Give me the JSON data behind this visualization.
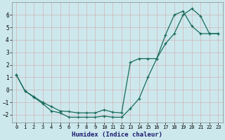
{
  "xlabel": "Humidex (Indice chaleur)",
  "background_color": "#cce8ed",
  "grid_color": "#b8d4d8",
  "line_color": "#1a6b5a",
  "series1_x": [
    0,
    1,
    2,
    3,
    4,
    5,
    6,
    7,
    8,
    9,
    10,
    11,
    12,
    13,
    14,
    15,
    16,
    17,
    18,
    19,
    20,
    21,
    22,
    23
  ],
  "series1_y": [
    1.2,
    -0.1,
    -0.6,
    -1.1,
    -1.7,
    -1.85,
    -2.2,
    -2.2,
    -2.2,
    -2.2,
    -2.1,
    -2.2,
    -2.2,
    -1.5,
    -0.7,
    1.0,
    2.5,
    3.7,
    4.5,
    6.0,
    6.5,
    5.9,
    4.5,
    4.5
  ],
  "series2_x": [
    0,
    1,
    2,
    3,
    4,
    5,
    6,
    7,
    8,
    9,
    10,
    11,
    12,
    13,
    14,
    15,
    16,
    17,
    18,
    19,
    20,
    21,
    22,
    23
  ],
  "series2_y": [
    1.2,
    -0.1,
    -0.55,
    -1.0,
    -1.35,
    -1.7,
    -1.75,
    -1.85,
    -1.85,
    -1.85,
    -1.6,
    -1.8,
    -1.85,
    2.2,
    2.5,
    2.5,
    2.5,
    4.4,
    6.0,
    6.3,
    5.1,
    4.5,
    4.5,
    4.5
  ],
  "ylim": [
    -2.6,
    7.0
  ],
  "xlim": [
    -0.5,
    23.5
  ],
  "yticks": [
    -2,
    -1,
    0,
    1,
    2,
    3,
    4,
    5,
    6
  ],
  "xticks": [
    0,
    1,
    2,
    3,
    4,
    5,
    6,
    7,
    8,
    9,
    10,
    11,
    12,
    13,
    14,
    15,
    16,
    17,
    18,
    19,
    20,
    21,
    22,
    23
  ]
}
